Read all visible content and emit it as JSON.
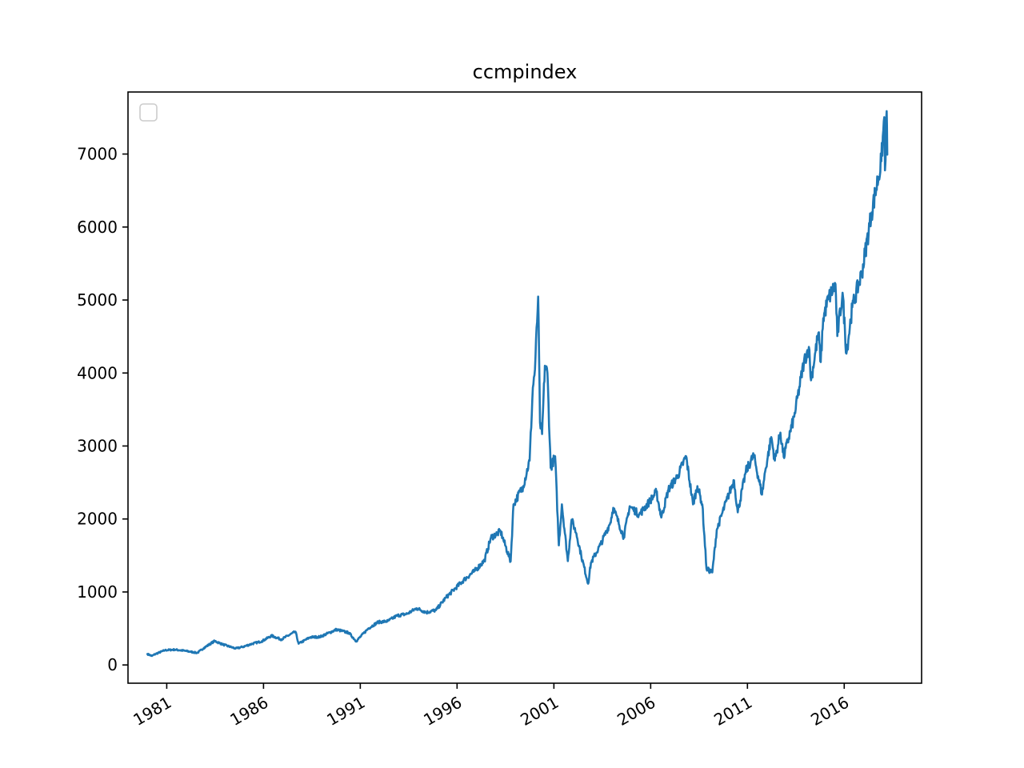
{
  "chart_data": {
    "type": "line",
    "title": "ccmpindex",
    "xlabel": "",
    "ylabel": "",
    "x_axis_type": "date",
    "xlim": [
      "1979-01-01",
      "2019-12-31"
    ],
    "ylim": [
      -250,
      7850
    ],
    "x_ticks": [
      "1981",
      "1986",
      "1991",
      "1996",
      "2001",
      "2006",
      "2011",
      "2016"
    ],
    "x_tick_dates": [
      "1981-01-01",
      "1986-01-01",
      "1991-01-01",
      "1996-01-01",
      "2001-01-01",
      "2006-01-01",
      "2011-01-01",
      "2016-01-01"
    ],
    "x_tick_rotation_deg": 30,
    "y_ticks": [
      0,
      1000,
      2000,
      3000,
      4000,
      5000,
      6000,
      7000
    ],
    "grid": false,
    "legend": {
      "position": "upper-left",
      "entries": []
    },
    "series": [
      {
        "color": "#1f77b4",
        "x": [
          "1980-01-02",
          "1980-03-27",
          "1980-06-01",
          "1980-12-01",
          "1981-06-01",
          "1981-12-01",
          "1982-08-01",
          "1982-12-01",
          "1983-06-24",
          "1983-12-01",
          "1984-07-24",
          "1984-12-01",
          "1985-06-01",
          "1985-12-01",
          "1986-06-01",
          "1986-12-01",
          "1987-08-26",
          "1987-10-26",
          "1988-06-01",
          "1988-12-01",
          "1989-10-09",
          "1990-06-01",
          "1990-10-16",
          "1991-06-01",
          "1991-12-01",
          "1992-06-01",
          "1992-12-01",
          "1993-06-01",
          "1993-12-01",
          "1994-06-01",
          "1994-12-01",
          "1995-06-01",
          "1995-12-01",
          "1996-06-01",
          "1996-12-01",
          "1997-06-01",
          "1997-10-01",
          "1998-04-01",
          "1998-10-08",
          "1998-12-01",
          "1999-06-01",
          "1999-10-01",
          "1999-12-01",
          "2000-01-10",
          "2000-03-10",
          "2000-04-14",
          "2000-05-23",
          "2000-07-15",
          "2000-09-01",
          "2000-11-01",
          "2001-01-24",
          "2001-04-04",
          "2001-06-01",
          "2001-09-21",
          "2001-12-01",
          "2002-03-01",
          "2002-06-01",
          "2002-10-09",
          "2002-12-01",
          "2003-06-01",
          "2003-12-01",
          "2004-01-26",
          "2004-08-12",
          "2004-12-01",
          "2005-06-01",
          "2005-12-01",
          "2006-04-19",
          "2006-07-21",
          "2006-12-01",
          "2007-06-01",
          "2007-10-31",
          "2008-03-10",
          "2008-06-01",
          "2008-09-01",
          "2008-11-20",
          "2009-03-09",
          "2009-06-01",
          "2009-12-01",
          "2010-04-23",
          "2010-07-02",
          "2010-12-01",
          "2011-04-29",
          "2011-10-03",
          "2011-12-01",
          "2012-03-26",
          "2012-06-01",
          "2012-09-14",
          "2012-11-15",
          "2013-06-01",
          "2013-12-01",
          "2014-03-05",
          "2014-04-15",
          "2014-09-01",
          "2014-10-15",
          "2014-12-01",
          "2015-03-02",
          "2015-07-20",
          "2015-08-24",
          "2015-12-01",
          "2016-02-11",
          "2016-06-01",
          "2016-12-01",
          "2017-06-01",
          "2017-12-01",
          "2018-01-26",
          "2018-02-08",
          "2018-03-12",
          "2018-03-23"
        ],
        "y": [
          150,
          124,
          150,
          202,
          210,
          195,
          165,
          232,
          328,
          280,
          225,
          247,
          290,
          325,
          400,
          350,
          456,
          291,
          380,
          385,
          485,
          440,
          325,
          500,
          586,
          600,
          677,
          700,
          777,
          720,
          752,
          920,
          1052,
          1180,
          1290,
          1430,
          1745,
          1830,
          1419,
          2200,
          2450,
          2800,
          3800,
          4050,
          5048,
          3320,
          3164,
          4100,
          4000,
          2700,
          2859,
          1638,
          2200,
          1423,
          1990,
          1800,
          1500,
          1114,
          1400,
          1650,
          1950,
          2153,
          1752,
          2175,
          2060,
          2230,
          2370,
          2020,
          2400,
          2600,
          2859,
          2200,
          2450,
          2200,
          1316,
          1268,
          1850,
          2250,
          2530,
          2091,
          2650,
          2873,
          2335,
          2650,
          3122,
          2800,
          3183,
          2850,
          3400,
          4150,
          4357,
          3900,
          4550,
          4150,
          4750,
          5008,
          5218,
          4506,
          5100,
          4266,
          4900,
          5380,
          6200,
          6900,
          7505,
          6777,
          7588,
          6993
        ]
      }
    ]
  }
}
